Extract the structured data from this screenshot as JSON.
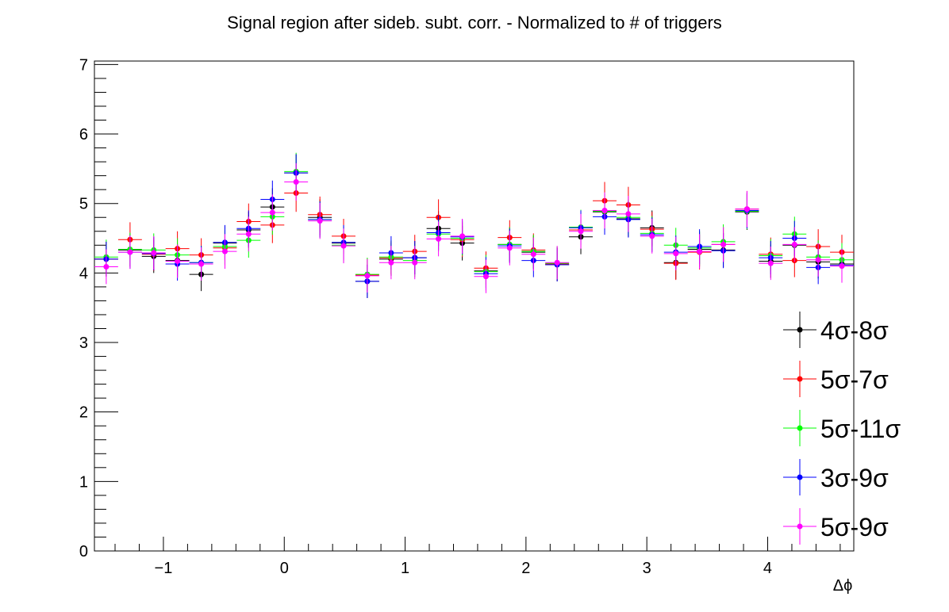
{
  "chart_data": {
    "type": "scatter",
    "title": "Signal region after sideb. subt. corr. - Normalized to # of triggers",
    "xlabel": "Δϕ",
    "ylabel": "",
    "xlim": [
      -1.5708,
      4.7124
    ],
    "ylim": [
      0,
      7.05
    ],
    "x_ticks": [
      -1,
      0,
      1,
      2,
      3,
      4
    ],
    "x_tick_labels": [
      "−1",
      "0",
      "1",
      "2",
      "3",
      "4"
    ],
    "y_ticks": [
      0,
      1,
      2,
      3,
      4,
      5,
      6,
      7
    ],
    "y_tick_labels": [
      "0",
      "1",
      "2",
      "3",
      "4",
      "5",
      "6",
      "7"
    ],
    "grid": false,
    "legend_position": "bottom-right",
    "bin_half_width": 0.0982,
    "x": [
      -1.473,
      -1.276,
      -1.08,
      -0.884,
      -0.687,
      -0.491,
      -0.295,
      -0.098,
      0.098,
      0.295,
      0.491,
      0.687,
      0.884,
      1.08,
      1.276,
      1.473,
      1.669,
      1.865,
      2.062,
      2.258,
      2.454,
      2.651,
      2.847,
      3.043,
      3.24,
      3.436,
      3.633,
      3.829,
      4.025,
      4.222,
      4.418,
      4.614
    ],
    "series": [
      {
        "name": "4σ-8σ",
        "color": "#000000",
        "values": [
          4.2,
          4.33,
          4.24,
          4.18,
          3.98,
          4.43,
          4.62,
          4.95,
          5.44,
          4.8,
          4.43,
          3.88,
          4.2,
          4.22,
          4.64,
          4.43,
          4.03,
          4.41,
          4.3,
          4.12,
          4.52,
          4.88,
          4.78,
          4.65,
          4.15,
          4.34,
          4.33,
          4.88,
          4.17,
          4.4,
          4.16,
          4.13
        ],
        "errors": [
          0.25,
          0.24,
          0.24,
          0.24,
          0.24,
          0.25,
          0.26,
          0.27,
          0.27,
          0.26,
          0.25,
          0.24,
          0.24,
          0.24,
          0.25,
          0.25,
          0.24,
          0.25,
          0.24,
          0.24,
          0.25,
          0.26,
          0.26,
          0.25,
          0.24,
          0.25,
          0.25,
          0.26,
          0.24,
          0.25,
          0.24,
          0.24
        ]
      },
      {
        "name": "5σ-7σ",
        "color": "#ff0000",
        "values": [
          4.2,
          4.48,
          4.27,
          4.35,
          4.26,
          4.36,
          4.74,
          4.69,
          5.15,
          4.84,
          4.53,
          3.97,
          4.22,
          4.31,
          4.8,
          4.48,
          4.07,
          4.51,
          4.33,
          4.13,
          4.62,
          5.04,
          4.98,
          4.63,
          4.14,
          4.3,
          4.41,
          4.92,
          4.27,
          4.18,
          4.38,
          4.3
        ],
        "errors": [
          0.25,
          0.25,
          0.24,
          0.25,
          0.24,
          0.25,
          0.26,
          0.26,
          0.27,
          0.26,
          0.25,
          0.24,
          0.24,
          0.24,
          0.26,
          0.25,
          0.24,
          0.25,
          0.24,
          0.24,
          0.25,
          0.27,
          0.26,
          0.25,
          0.24,
          0.25,
          0.25,
          0.26,
          0.24,
          0.24,
          0.25,
          0.25
        ]
      },
      {
        "name": "5σ-11σ",
        "color": "#00ff00",
        "values": [
          4.23,
          4.34,
          4.33,
          4.26,
          4.15,
          4.38,
          4.47,
          4.81,
          5.46,
          4.77,
          4.4,
          3.98,
          4.23,
          4.18,
          4.56,
          4.5,
          4.02,
          4.41,
          4.31,
          4.14,
          4.66,
          4.89,
          4.8,
          4.57,
          4.4,
          4.36,
          4.45,
          4.89,
          4.25,
          4.56,
          4.23,
          4.19
        ],
        "errors": [
          0.25,
          0.24,
          0.24,
          0.24,
          0.24,
          0.25,
          0.25,
          0.26,
          0.27,
          0.26,
          0.25,
          0.24,
          0.24,
          0.24,
          0.25,
          0.25,
          0.24,
          0.25,
          0.24,
          0.24,
          0.25,
          0.26,
          0.26,
          0.25,
          0.25,
          0.25,
          0.25,
          0.26,
          0.24,
          0.25,
          0.24,
          0.24
        ]
      },
      {
        "name": "3σ-9σ",
        "color": "#0000ff",
        "values": [
          4.2,
          4.3,
          4.28,
          4.13,
          4.15,
          4.44,
          4.64,
          5.06,
          5.44,
          4.77,
          4.44,
          3.88,
          4.29,
          4.22,
          4.58,
          4.52,
          3.99,
          4.39,
          4.18,
          4.12,
          4.65,
          4.81,
          4.77,
          4.55,
          4.3,
          4.38,
          4.32,
          4.9,
          4.22,
          4.5,
          4.08,
          4.11
        ],
        "errors": [
          0.25,
          0.24,
          0.24,
          0.24,
          0.24,
          0.25,
          0.26,
          0.27,
          0.27,
          0.26,
          0.25,
          0.24,
          0.24,
          0.24,
          0.25,
          0.25,
          0.24,
          0.25,
          0.24,
          0.24,
          0.25,
          0.26,
          0.26,
          0.25,
          0.24,
          0.25,
          0.25,
          0.26,
          0.24,
          0.25,
          0.24,
          0.24
        ]
      },
      {
        "name": "5σ-9σ",
        "color": "#ff00ff",
        "values": [
          4.09,
          4.3,
          4.29,
          4.17,
          4.13,
          4.31,
          4.56,
          4.87,
          5.31,
          4.75,
          4.39,
          3.96,
          4.15,
          4.15,
          4.49,
          4.53,
          3.95,
          4.36,
          4.27,
          4.15,
          4.6,
          4.9,
          4.85,
          4.53,
          4.28,
          4.31,
          4.41,
          4.92,
          4.14,
          4.41,
          4.19,
          4.1
        ],
        "errors": [
          0.25,
          0.24,
          0.24,
          0.24,
          0.24,
          0.25,
          0.25,
          0.26,
          0.27,
          0.26,
          0.25,
          0.24,
          0.24,
          0.24,
          0.25,
          0.25,
          0.24,
          0.25,
          0.24,
          0.24,
          0.25,
          0.26,
          0.26,
          0.25,
          0.24,
          0.25,
          0.25,
          0.26,
          0.24,
          0.25,
          0.24,
          0.24
        ]
      }
    ]
  }
}
